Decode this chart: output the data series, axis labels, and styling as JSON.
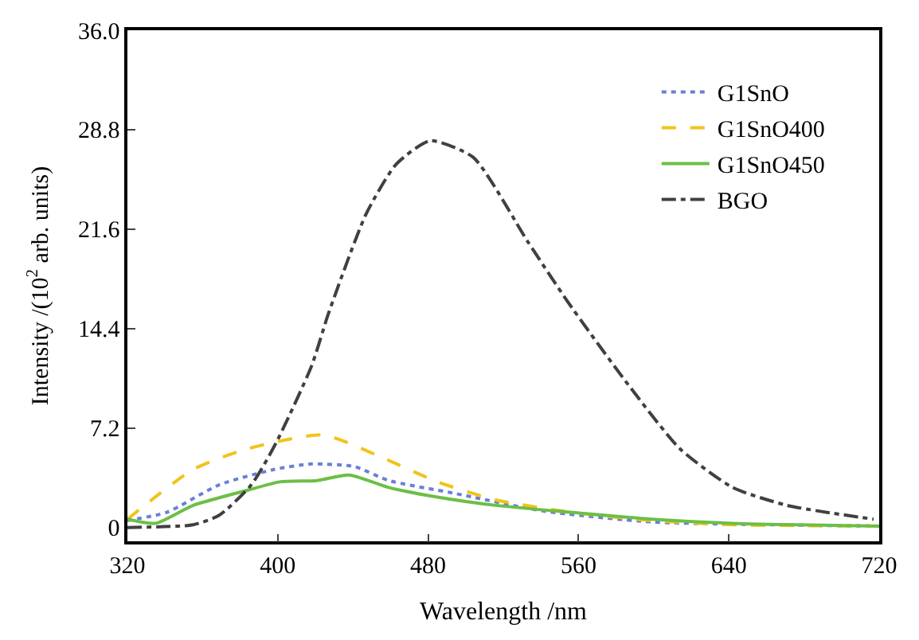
{
  "chart_data": {
    "type": "line",
    "xlabel": "Wavelength /nm",
    "ylabel": "Intensity /(10$^{2}$ arb. units)",
    "xlim": [
      320,
      720
    ],
    "xticks": [
      320,
      400,
      480,
      560,
      640,
      720
    ],
    "ylim": [
      -1,
      36
    ],
    "yticks": [
      0,
      {
        "value": 7.2,
        "label": "7.2"
      },
      {
        "value": 14.4,
        "label": "14.4"
      },
      {
        "value": 21.6,
        "label": "21.6"
      },
      {
        "value": 28.8,
        "label": "28.8"
      },
      {
        "value": 36,
        "label": "36.0"
      }
    ],
    "legend": "top right",
    "series": [
      {
        "name": "G1SnO",
        "color": "#6b7fd7",
        "line_style": "dotted",
        "x": [
          320,
          341,
          369,
          398,
          418,
          441,
          459,
          493,
          541,
          599,
          720
        ],
        "values": [
          0.5,
          1.1,
          3.1,
          4.2,
          4.6,
          4.4,
          3.4,
          2.5,
          1.2,
          0.4,
          0.1
        ]
      },
      {
        "name": "G1SnO400",
        "color": "#f0c419",
        "line_style": "dashed",
        "x": [
          320,
          355,
          384,
          424,
          455,
          485,
          516,
          556,
          599,
          642,
          720
        ],
        "values": [
          0.6,
          4.2,
          5.7,
          6.7,
          5.1,
          3.3,
          2.0,
          1.1,
          0.5,
          0.2,
          0.1
        ]
      },
      {
        "name": "G1SnO450",
        "color": "#6cbf45",
        "line_style": "solid",
        "x": [
          320,
          335,
          355,
          384,
          401,
          421,
          438,
          459,
          485,
          516,
          556,
          599,
          642,
          720
        ],
        "values": [
          0.6,
          0.3,
          1.6,
          2.7,
          3.3,
          3.4,
          3.8,
          2.9,
          2.2,
          1.6,
          1.1,
          0.6,
          0.3,
          0.1
        ]
      },
      {
        "name": "BGO",
        "color": "#404040",
        "line_style": "dashdot",
        "x": [
          320,
          355,
          369,
          386,
          399,
          418,
          427,
          447,
          463,
          481,
          504,
          533,
          554,
          585,
          614,
          642,
          671,
          717
        ],
        "values": [
          0.0,
          0.2,
          0.9,
          3.1,
          6.1,
          11.7,
          15.5,
          22.7,
          26.3,
          28.0,
          26.8,
          20.7,
          16.4,
          10.6,
          5.7,
          2.9,
          1.6,
          0.6
        ]
      }
    ]
  }
}
